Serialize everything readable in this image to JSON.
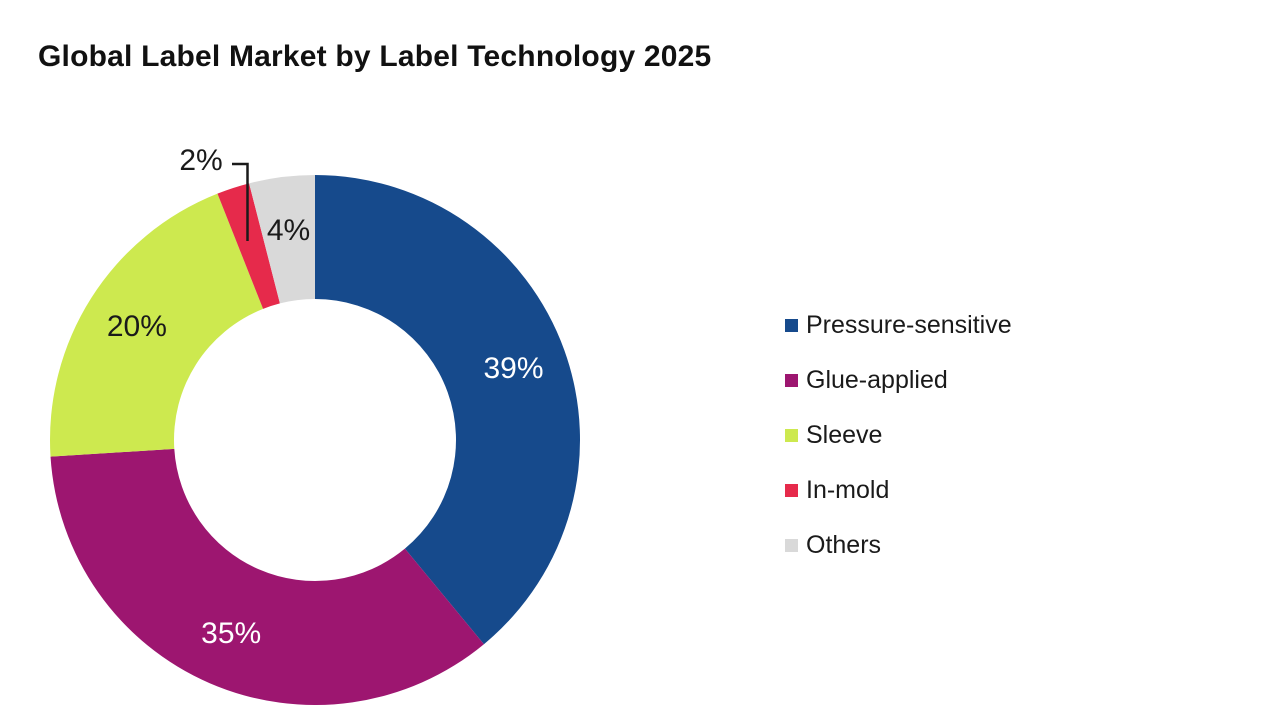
{
  "chart_data": {
    "type": "pie",
    "subtype": "donut",
    "title": "Global Label Market by Label Technology 2025",
    "legend_position": "right",
    "start_angle": "12-oclock",
    "direction": "clockwise",
    "hole_ratio": 0.53,
    "categories": [
      "Pressure-sensitive",
      "Glue-applied",
      "Sleeve",
      "In-mold",
      "Others"
    ],
    "values": [
      39,
      35,
      20,
      2,
      4
    ],
    "slices": [
      {
        "name": "Pressure-sensitive",
        "value": 39,
        "label": "39%",
        "color": "#164A8C",
        "label_color": "#ffffff",
        "label_placement": "inside"
      },
      {
        "name": "Glue-applied",
        "value": 35,
        "label": "35%",
        "color": "#9D1670",
        "label_color": "#ffffff",
        "label_placement": "inside"
      },
      {
        "name": "Sleeve",
        "value": 20,
        "label": "20%",
        "color": "#CDE94F",
        "label_color": "#1a1a1a",
        "label_placement": "inside"
      },
      {
        "name": "In-mold",
        "value": 2,
        "label": "2%",
        "color": "#E62A4B",
        "label_color": "#1a1a1a",
        "label_placement": "outside-callout"
      },
      {
        "name": "Others",
        "value": 4,
        "label": "4%",
        "color": "#D9D9D9",
        "label_color": "#1a1a1a",
        "label_placement": "inside"
      }
    ],
    "callout_color": "#1a1a1a"
  }
}
